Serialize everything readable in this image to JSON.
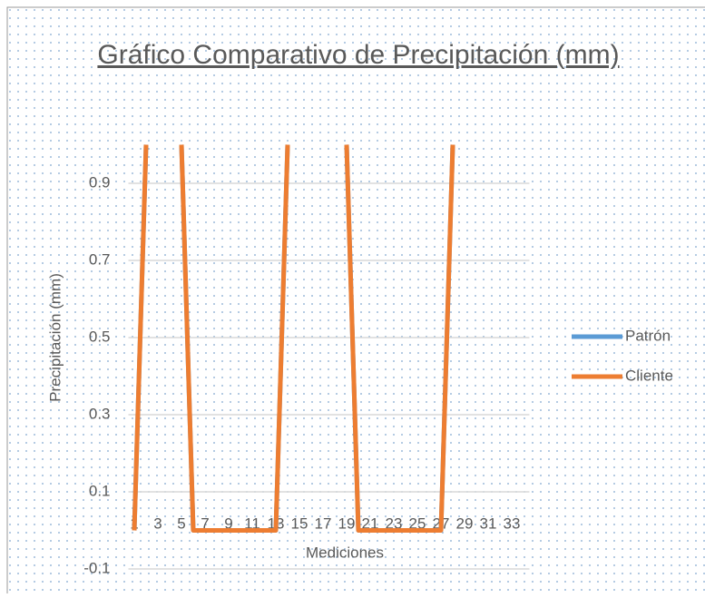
{
  "chart_data": {
    "type": "line",
    "title": "Gráfico Comparativo de Precipitación (mm)",
    "x_label": "Mediciones",
    "y_label": "Precipitación (mm)",
    "categories": [
      1,
      null,
      3,
      null,
      5,
      null,
      7,
      null,
      9,
      null,
      11,
      null,
      13,
      null,
      15,
      null,
      17,
      null,
      19,
      null,
      21,
      null,
      23,
      null,
      25,
      null,
      27,
      null,
      29,
      null,
      31,
      null,
      33,
      null
    ],
    "series": [
      {
        "name": "Patrón",
        "color": "#5b9bd5",
        "values": [
          0,
          1,
          null,
          null,
          1,
          0,
          0,
          0,
          0,
          0,
          0,
          0,
          0,
          1,
          null,
          null,
          null,
          null,
          1,
          0,
          0,
          0,
          0,
          0,
          0,
          0,
          0,
          1,
          null,
          null,
          null,
          null,
          null,
          null
        ]
      },
      {
        "name": "Cliente",
        "color": "#ed7d31",
        "values": [
          0,
          1,
          null,
          null,
          1,
          0,
          0,
          0,
          0,
          0,
          0,
          0,
          0,
          1,
          null,
          null,
          null,
          null,
          1,
          0,
          0,
          0,
          0,
          0,
          0,
          0,
          0,
          1,
          null,
          null,
          null,
          null,
          null,
          null
        ]
      }
    ],
    "ylim": [
      -0.1,
      1.1
    ],
    "yticks": [
      -0.1,
      0.1,
      0.3,
      0.5,
      0.7,
      0.9
    ],
    "grid": true,
    "legend": "right"
  }
}
